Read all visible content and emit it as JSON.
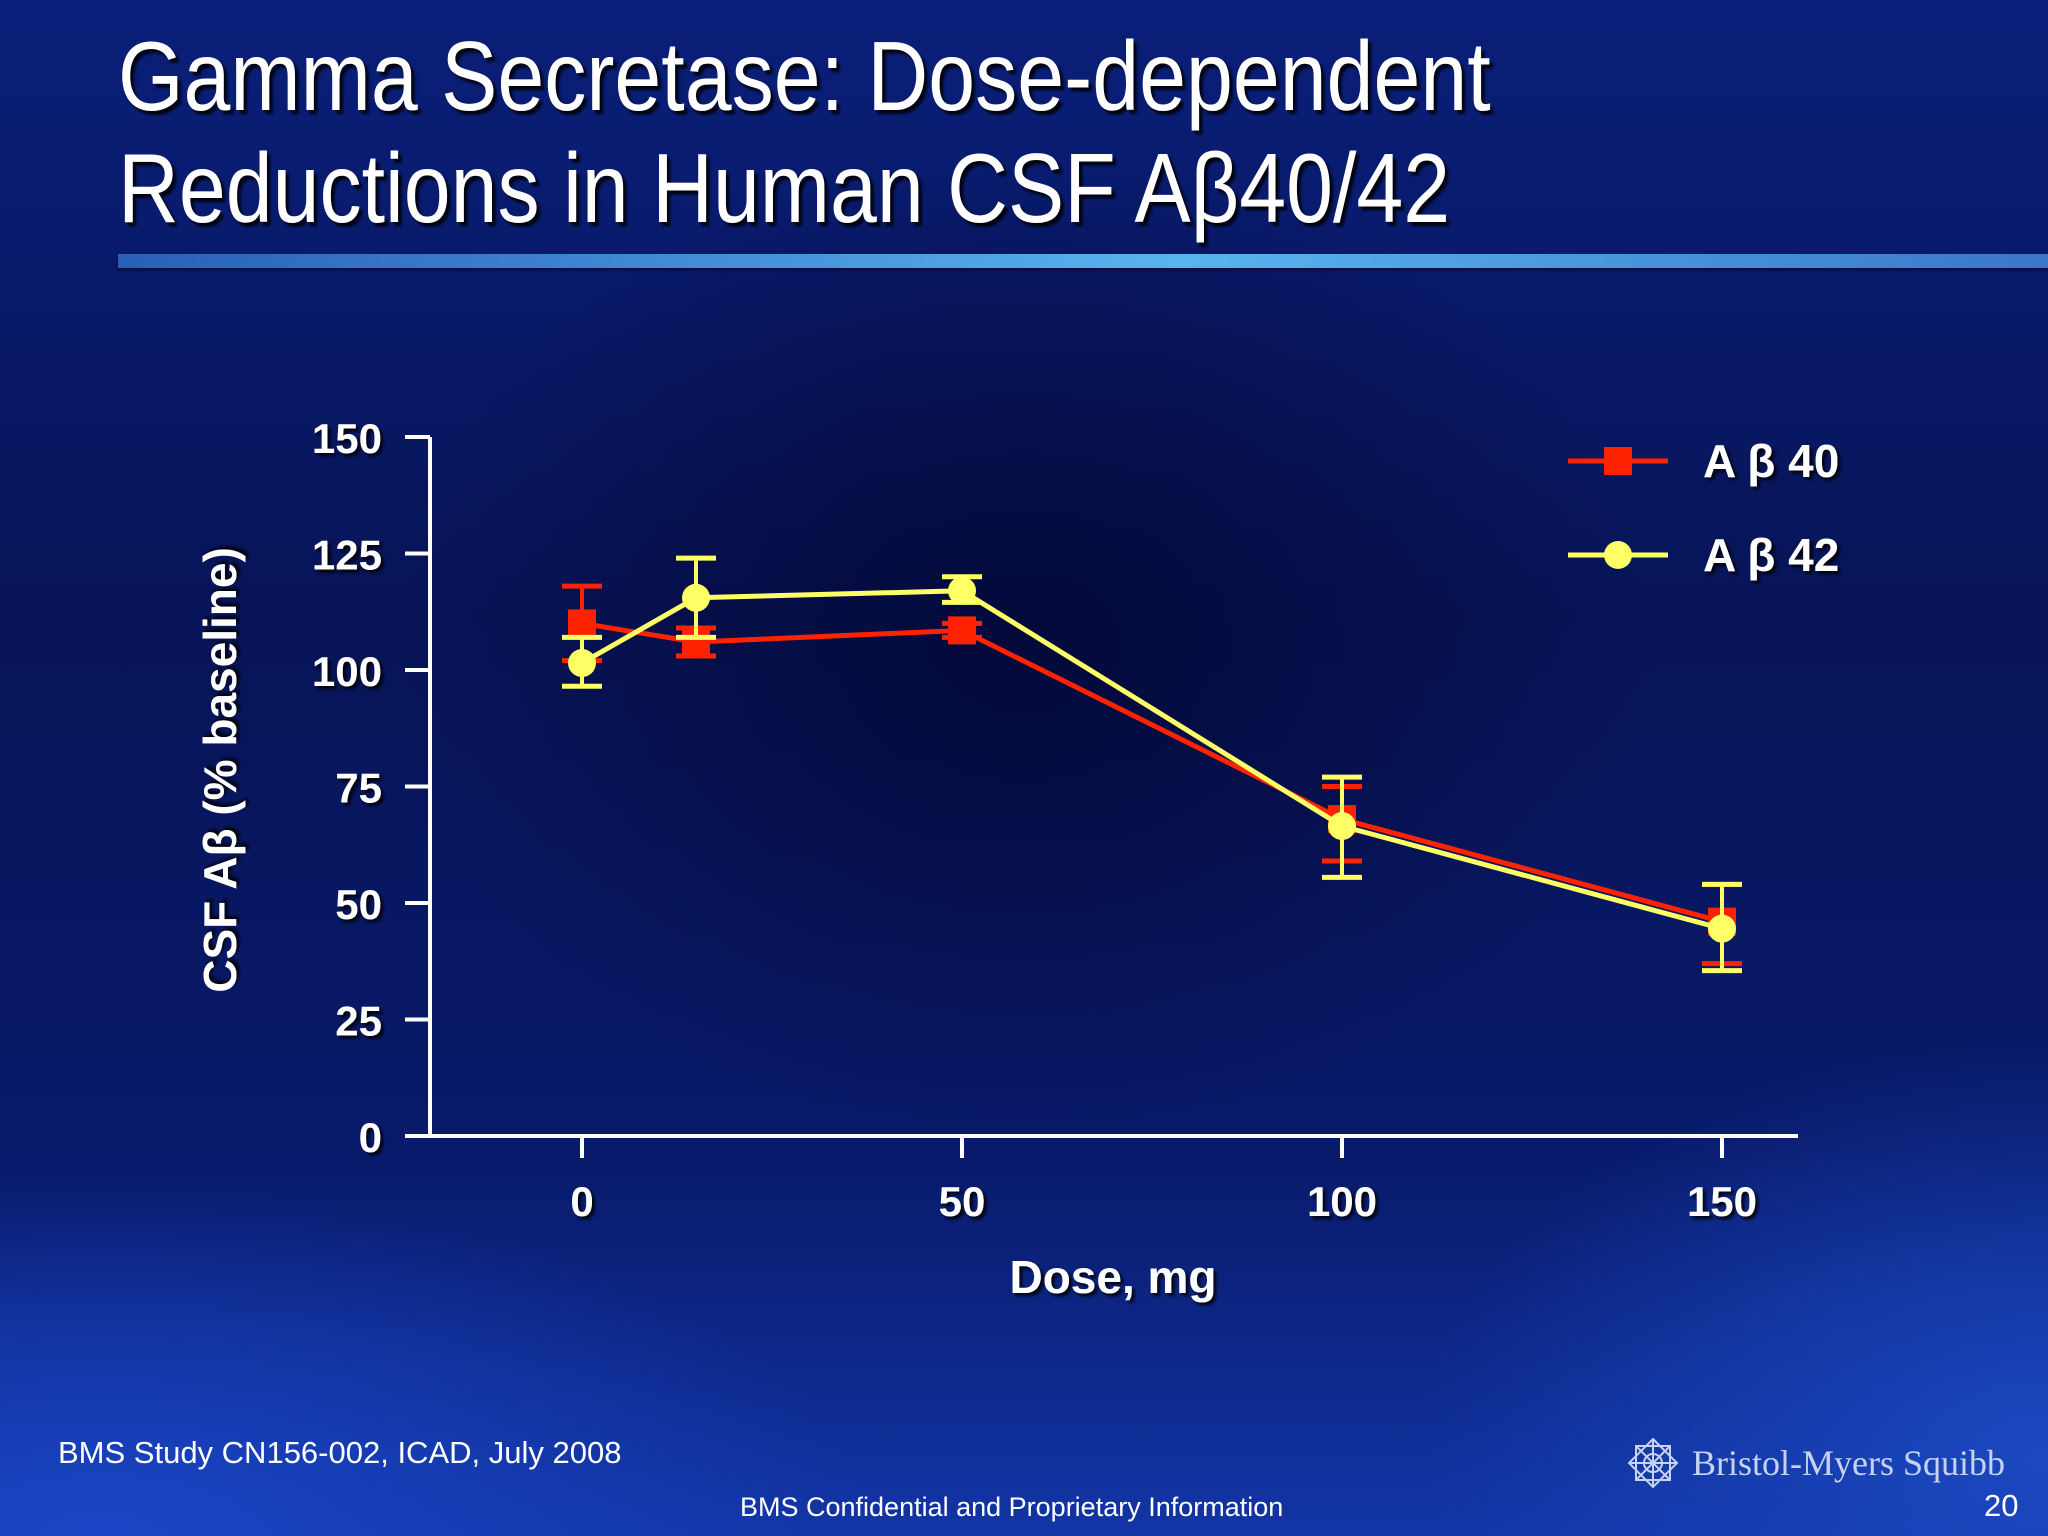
{
  "slide": {
    "title_line1": "Gamma Secretase: Dose-dependent",
    "title_line2": "Reductions in Human CSF Aβ40/42",
    "footer_source": "BMS Study CN156-002, ICAD, July 2008",
    "footer_confidential": "BMS Confidential and Proprietary Information",
    "page_number": "20",
    "logo_text": "Bristol-Myers Squibb",
    "logo_icon": "starburst-logo-icon"
  },
  "colors": {
    "ab40": "#ff2200",
    "ab42": "#ffff66",
    "axis": "#ffffff",
    "text": "#ffffff"
  },
  "chart_data": {
    "type": "line",
    "xlabel": "Dose, mg",
    "ylabel": "CSF Aβ (% baseline)",
    "xlim": [
      -20,
      160
    ],
    "ylim": [
      0,
      150
    ],
    "xticks": [
      0,
      50,
      100,
      150
    ],
    "xtick_labels": [
      "0",
      "50",
      "100",
      "150"
    ],
    "yticks": [
      0,
      25,
      50,
      75,
      100,
      125,
      150
    ],
    "ytick_labels": [
      "0",
      "25",
      "50",
      "75",
      "100",
      "125",
      "150"
    ],
    "legend_position": "top-right",
    "series": [
      {
        "name": "A β 40",
        "marker": "square",
        "color": "#ff2200",
        "x": [
          0,
          15,
          50,
          100,
          150
        ],
        "y": [
          110,
          106,
          108.5,
          68,
          46
        ],
        "err_low": [
          102,
          103,
          107,
          59,
          37
        ],
        "err_high": [
          118,
          109,
          110,
          75,
          54
        ]
      },
      {
        "name": "A β 42",
        "marker": "circle",
        "color": "#ffff66",
        "x": [
          0,
          15,
          50,
          100,
          150
        ],
        "y": [
          101.5,
          115.5,
          117,
          66.5,
          44.5
        ],
        "err_low": [
          96.5,
          107,
          114.5,
          55.5,
          35.5
        ],
        "err_high": [
          107,
          124,
          120,
          77,
          54
        ]
      }
    ]
  }
}
